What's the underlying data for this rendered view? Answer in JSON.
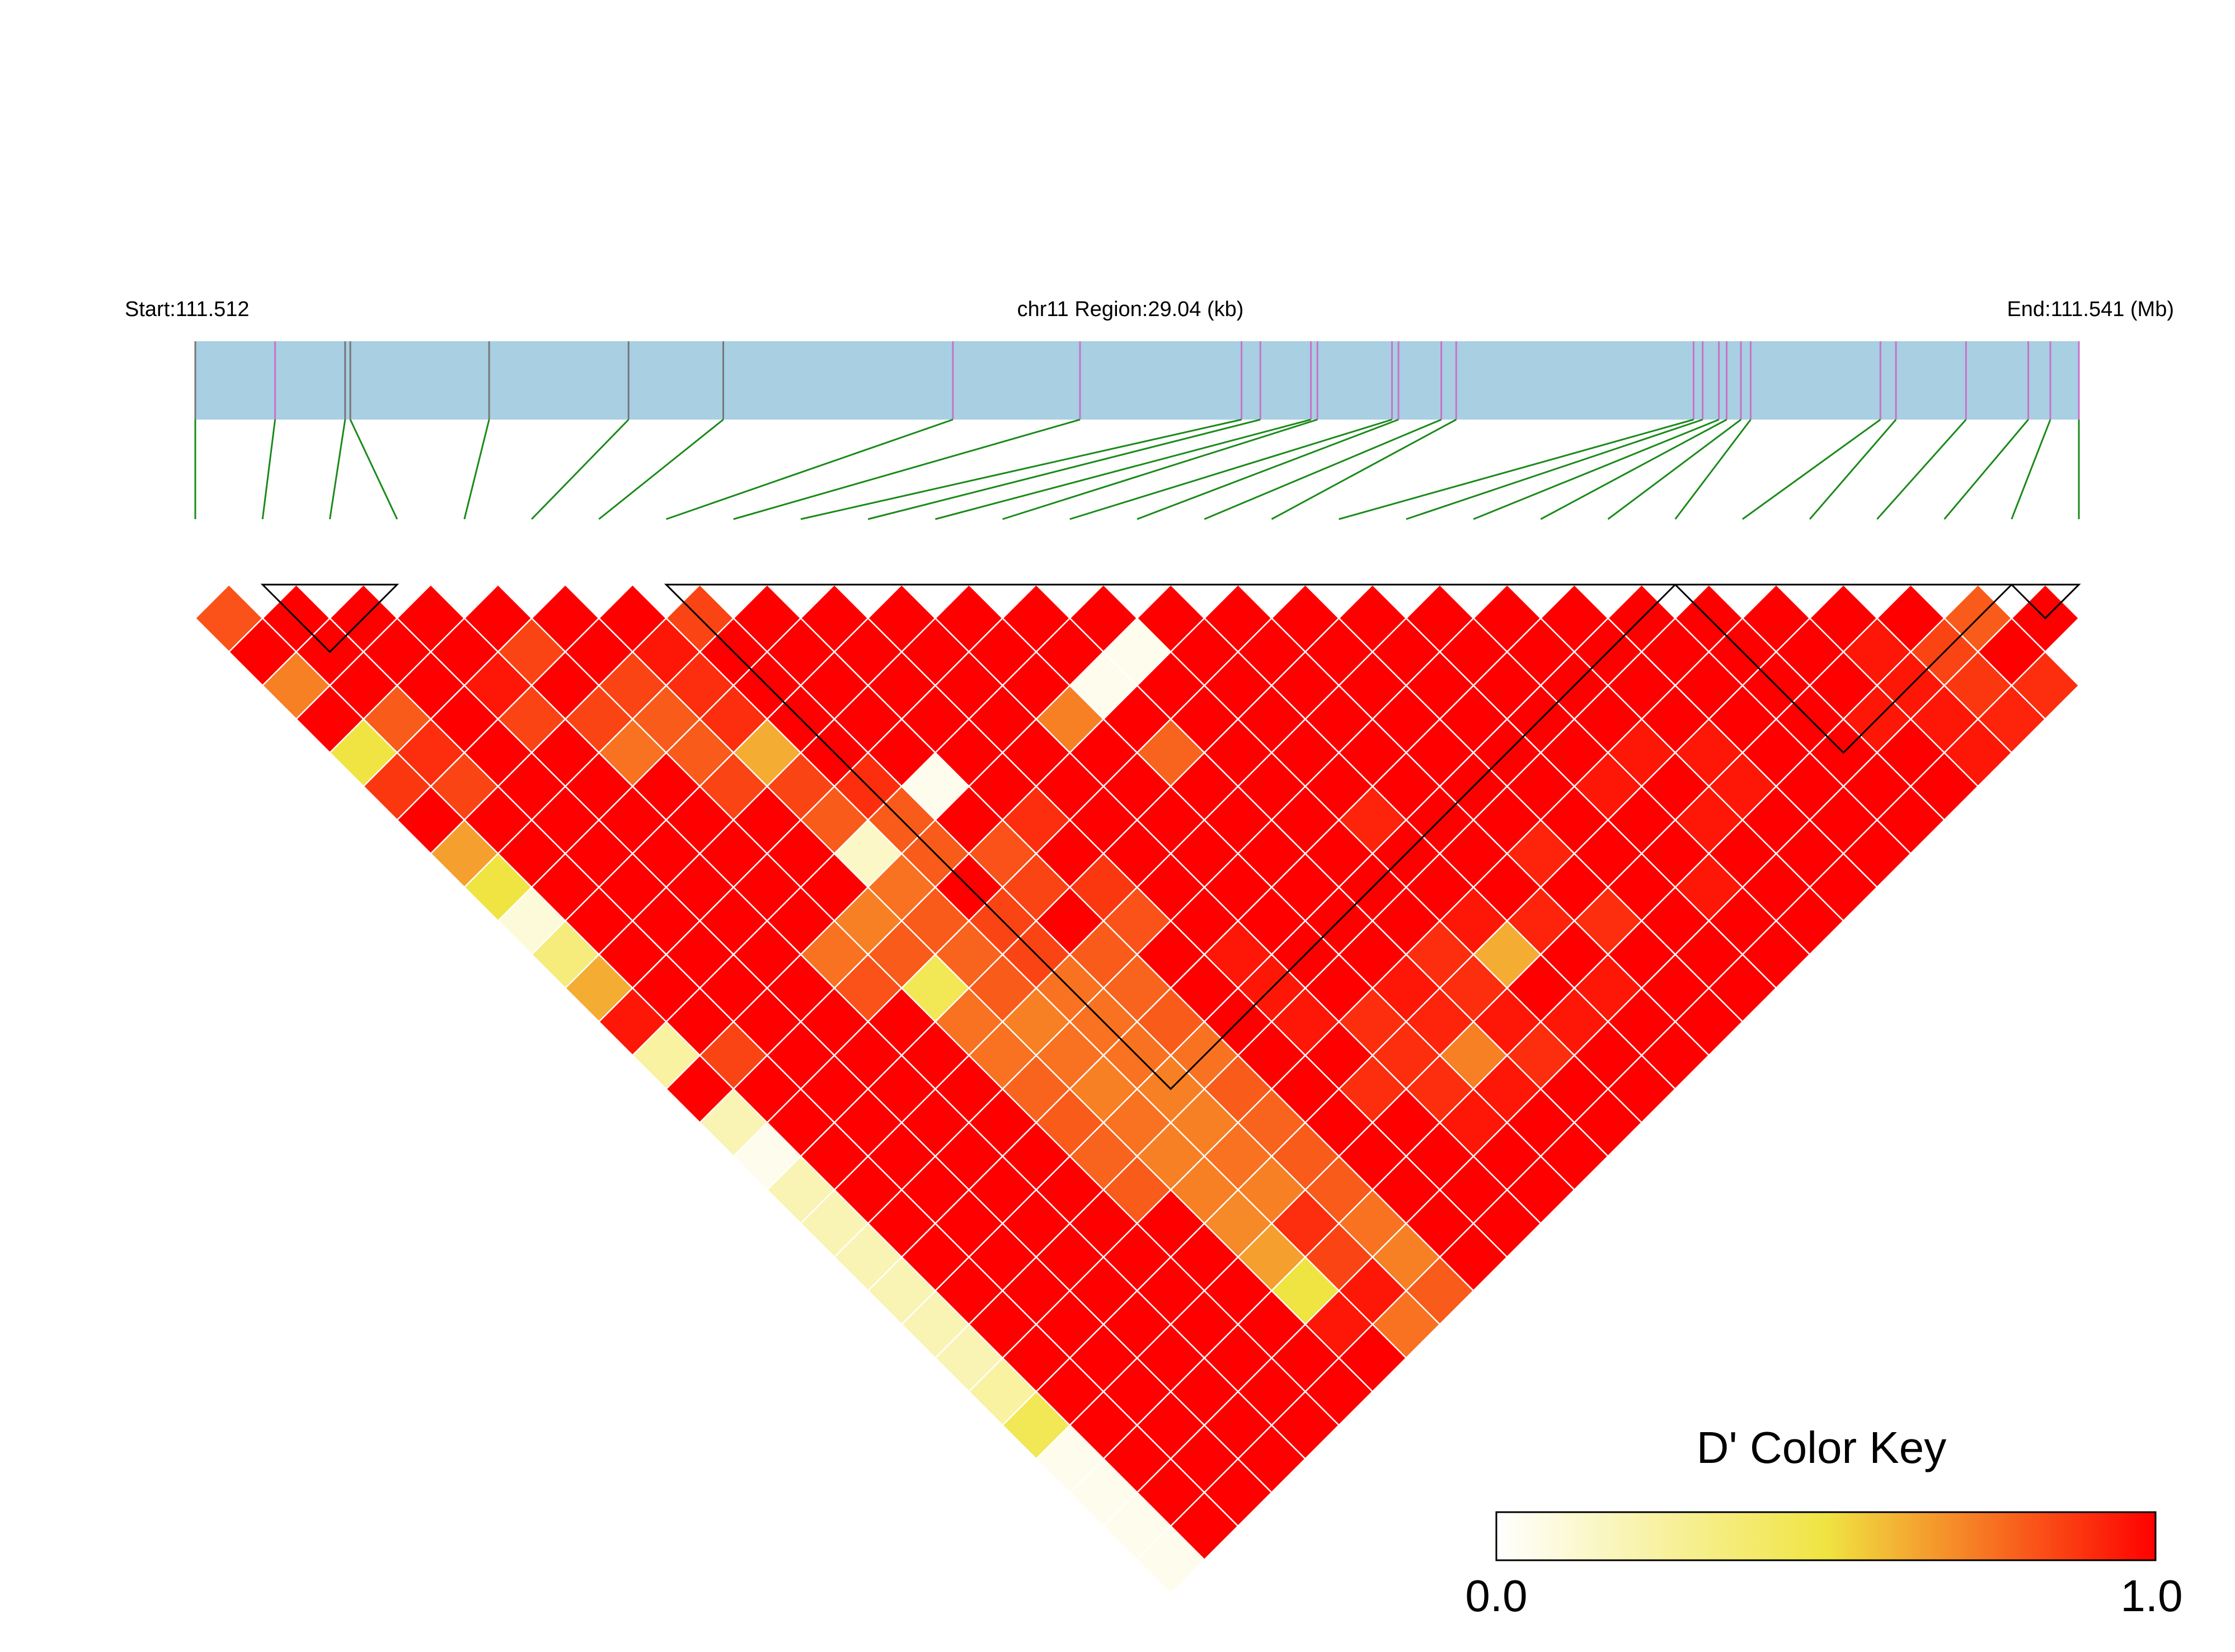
{
  "chart_data": {
    "type": "heatmap",
    "subtype": "linkage-disequilibrium",
    "header": {
      "start_label": "Start:111.512",
      "region_label": "chr11 Region:29.04 (kb)",
      "end_label": "End:111.541 (Mb)"
    },
    "region_mb": [
      111.512,
      111.541
    ],
    "snp_count": 29,
    "snp_positions_kb": [
      0.0,
      1.23,
      2.31,
      2.39,
      4.53,
      6.68,
      8.14,
      11.68,
      13.64,
      16.13,
      16.42,
      17.2,
      17.3,
      18.45,
      18.55,
      19.21,
      19.44,
      23.1,
      23.24,
      23.49,
      23.61,
      23.83,
      23.98,
      25.98,
      26.22,
      27.3,
      28.26,
      28.6,
      29.04
    ],
    "snp_marker_colors": [
      "#777777",
      "#c972c9",
      "#777777",
      "#777777",
      "#777777",
      "#777777",
      "#777777",
      "#c972c9",
      "#c972c9",
      "#c972c9",
      "#c972c9",
      "#c972c9",
      "#c972c9",
      "#c972c9",
      "#c972c9",
      "#c972c9",
      "#c972c9",
      "#c972c9",
      "#c972c9",
      "#c972c9",
      "#c972c9",
      "#c972c9",
      "#c972c9",
      "#c972c9",
      "#c972c9",
      "#c972c9",
      "#c972c9",
      "#c972c9",
      "#c972c9"
    ],
    "ld_measure": "D'",
    "d_prime_rows": [
      [
        0.82,
        1.0,
        1.0,
        1.0,
        1.0,
        1.0,
        1.0,
        0.85,
        1.0,
        1.0,
        1.0,
        1.0,
        1.0,
        1.0,
        1.0,
        1.0,
        1.0,
        1.0,
        1.0,
        1.0,
        1.0,
        1.0,
        1.0,
        1.0,
        1.0,
        1.0,
        0.8,
        1.0
      ],
      [
        1.0,
        1.0,
        1.0,
        1.0,
        0.85,
        1.0,
        0.95,
        1.0,
        1.0,
        1.0,
        1.0,
        1.0,
        1.0,
        0.05,
        1.0,
        1.0,
        1.0,
        1.0,
        1.0,
        1.0,
        1.0,
        1.0,
        1.0,
        1.0,
        0.95,
        0.85,
        1.0
      ],
      [
        0.72,
        1.0,
        1.0,
        0.95,
        1.0,
        0.85,
        0.9,
        1.0,
        1.0,
        1.0,
        1.0,
        1.0,
        0.05,
        1.0,
        1.0,
        1.0,
        1.0,
        1.0,
        1.0,
        1.0,
        1.0,
        1.0,
        1.0,
        1.0,
        0.95,
        0.88,
        0.9
      ],
      [
        1.0,
        0.8,
        1.0,
        0.85,
        0.85,
        0.8,
        0.9,
        1.0,
        1.0,
        1.0,
        1.0,
        0.72,
        1.0,
        1.0,
        1.0,
        1.0,
        1.0,
        1.0,
        1.0,
        1.0,
        1.0,
        1.0,
        1.0,
        0.95,
        0.95,
        0.92
      ],
      [
        0.5,
        0.9,
        1.0,
        1.0,
        0.75,
        0.8,
        0.62,
        1.0,
        1.0,
        1.0,
        1.0,
        1.0,
        0.78,
        1.0,
        1.0,
        1.0,
        1.0,
        1.0,
        1.0,
        0.95,
        0.95,
        1.0,
        1.0,
        1.0,
        0.95
      ],
      [
        0.88,
        0.85,
        1.0,
        1.0,
        1.0,
        0.85,
        0.85,
        0.9,
        0.05,
        1.0,
        1.0,
        1.0,
        1.0,
        1.0,
        1.0,
        1.0,
        1.0,
        1.0,
        0.95,
        1.0,
        0.95,
        1.0,
        1.0,
        1.0
      ],
      [
        1.0,
        1.0,
        1.0,
        1.0,
        1.0,
        1.0,
        0.8,
        0.8,
        1.0,
        0.9,
        1.0,
        1.0,
        1.0,
        1.0,
        0.92,
        1.0,
        1.0,
        1.0,
        1.0,
        0.95,
        1.0,
        1.0,
        1.0
      ],
      [
        0.65,
        1.0,
        1.0,
        1.0,
        1.0,
        1.0,
        0.15,
        0.8,
        0.82,
        1.0,
        1.0,
        1.0,
        1.0,
        1.0,
        1.0,
        1.0,
        0.92,
        1.0,
        1.0,
        1.0,
        1.0,
        1.0
      ],
      [
        0.5,
        1.0,
        1.0,
        1.0,
        1.0,
        1.0,
        0.75,
        1.0,
        0.85,
        0.88,
        1.0,
        1.0,
        1.0,
        1.0,
        1.0,
        1.0,
        1.0,
        1.0,
        0.95,
        1.0,
        1.0
      ],
      [
        0.1,
        1.0,
        1.0,
        1.0,
        1.0,
        0.72,
        0.8,
        0.85,
        1.0,
        0.82,
        1.0,
        1.0,
        1.0,
        1.0,
        0.95,
        0.92,
        0.9,
        1.0,
        1.0,
        1.0
      ],
      [
        0.35,
        1.0,
        1.0,
        1.0,
        0.75,
        0.8,
        0.78,
        0.85,
        0.8,
        1.0,
        0.95,
        1.0,
        1.0,
        0.9,
        0.62,
        1.0,
        1.0,
        1.0,
        1.0
      ],
      [
        0.62,
        1.0,
        1.0,
        1.0,
        0.82,
        0.45,
        0.8,
        0.75,
        0.78,
        1.0,
        0.95,
        1.0,
        0.95,
        0.9,
        1.0,
        0.95,
        1.0,
        1.0
      ],
      [
        0.95,
        1.0,
        1.0,
        1.0,
        1.0,
        0.75,
        0.72,
        0.75,
        0.8,
        1.0,
        0.95,
        0.9,
        0.92,
        0.95,
        0.95,
        1.0,
        1.0
      ],
      [
        0.25,
        0.85,
        1.0,
        1.0,
        1.0,
        0.75,
        0.75,
        0.75,
        0.75,
        1.0,
        1.0,
        0.9,
        0.72,
        0.9,
        1.0,
        1.0
      ],
      [
        1.0,
        1.0,
        1.0,
        1.0,
        1.0,
        0.78,
        0.72,
        0.72,
        0.8,
        1.0,
        0.9,
        0.9,
        0.95,
        1.0,
        1.0
      ],
      [
        0.2,
        1.0,
        1.0,
        1.0,
        1.0,
        0.8,
        0.75,
        0.72,
        0.78,
        1.0,
        1.0,
        0.95,
        1.0,
        1.0
      ],
      [
        0.05,
        1.0,
        1.0,
        1.0,
        1.0,
        0.78,
        0.72,
        0.75,
        0.8,
        1.0,
        1.0,
        1.0,
        1.0
      ],
      [
        0.2,
        1.0,
        1.0,
        1.0,
        1.0,
        0.8,
        0.72,
        0.72,
        0.8,
        1.0,
        1.0,
        1.0
      ],
      [
        0.2,
        1.0,
        1.0,
        1.0,
        1.0,
        1.0,
        0.7,
        0.9,
        0.75,
        1.0,
        1.0
      ],
      [
        0.2,
        1.0,
        1.0,
        1.0,
        1.0,
        1.0,
        0.65,
        0.85,
        0.72,
        1.0
      ],
      [
        0.2,
        1.0,
        1.0,
        1.0,
        1.0,
        1.0,
        0.5,
        0.95,
        0.8
      ],
      [
        0.2,
        1.0,
        1.0,
        1.0,
        1.0,
        1.0,
        0.95,
        0.75
      ],
      [
        0.2,
        1.0,
        1.0,
        1.0,
        1.0,
        1.0,
        1.0
      ],
      [
        0.25,
        1.0,
        1.0,
        1.0,
        1.0,
        1.0
      ],
      [
        0.45,
        1.0,
        1.0,
        1.0,
        1.0
      ],
      [
        0.05,
        1.0,
        1.0,
        1.0
      ],
      [
        0.05,
        1.0,
        1.0
      ],
      [
        0.05,
        1.0
      ],
      [
        0.05
      ]
    ],
    "ld_blocks": [
      [
        1,
        3
      ],
      [
        7,
        22
      ],
      [
        22,
        27
      ],
      [
        27,
        28
      ]
    ],
    "color_key": {
      "title": "D' Color Key",
      "min_label": "0.0",
      "max_label": "1.0",
      "range": [
        0,
        1
      ],
      "stops": [
        "#ffffff",
        "#f0e442",
        "#ff0000"
      ]
    },
    "colors": {
      "track_fill": "#a8cfe2",
      "connector_line": "#1a8a1a",
      "cell_outline": "#ffffff",
      "block_outline": "#000000"
    }
  }
}
